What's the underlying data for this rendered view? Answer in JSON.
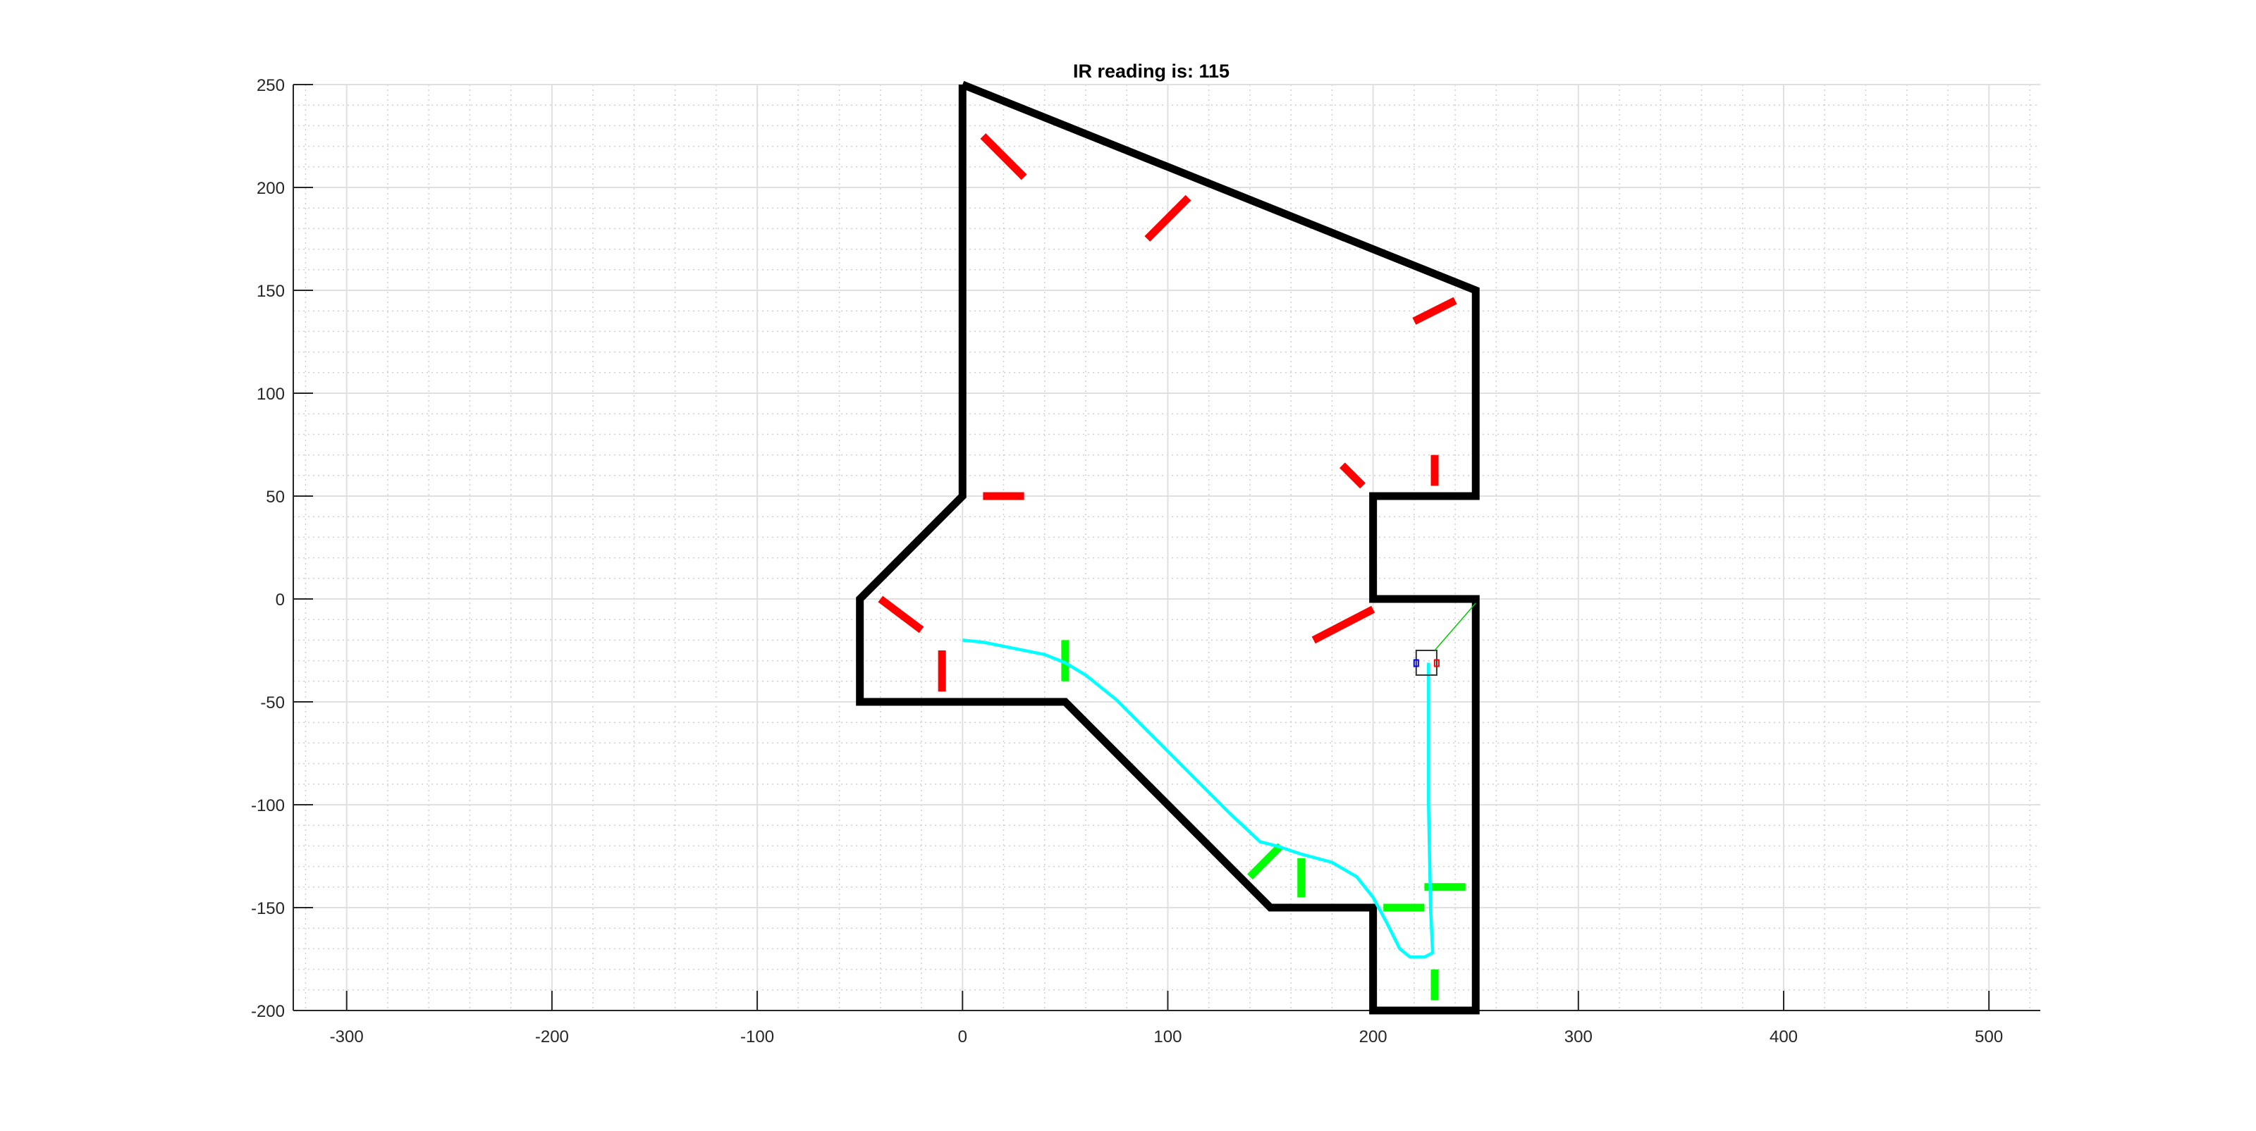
{
  "chart_data": {
    "type": "line",
    "title": "IR reading is: 115",
    "xlabel": "",
    "ylabel": "",
    "xlim": [
      -326,
      525
    ],
    "ylim": [
      -200,
      250
    ],
    "xticks": [
      -300,
      -200,
      -100,
      0,
      100,
      200,
      300,
      400,
      500
    ],
    "yticks": [
      -200,
      -150,
      -100,
      -50,
      0,
      50,
      100,
      150,
      200,
      250
    ],
    "xtick_labels": [
      "-300",
      "-200",
      "-100",
      "0",
      "100",
      "200",
      "300",
      "400",
      "500"
    ],
    "ytick_labels": [
      "-200",
      "-150",
      "-100",
      "-50",
      "0",
      "50",
      "100",
      "150",
      "200",
      "250"
    ],
    "grid": true,
    "minor_grid": true,
    "colors": {
      "wall": "#000000",
      "red_marker": "#ff0000",
      "green_marker": "#00ff00",
      "path": "#00ffff",
      "ir_ray": "#00cc00",
      "robot": "#333333",
      "left_wheel": "#0000ff",
      "right_wheel": "#ff0000"
    },
    "walls": [
      [
        0,
        250
      ],
      [
        250,
        150
      ],
      [
        250,
        50
      ],
      [
        200,
        50
      ],
      [
        200,
        0
      ],
      [
        250,
        0
      ],
      [
        250,
        -200
      ],
      [
        200,
        -200
      ],
      [
        200,
        -150
      ],
      [
        150,
        -150
      ],
      [
        50,
        -50
      ],
      [
        -50,
        -50
      ],
      [
        -50,
        0
      ],
      [
        0,
        50
      ],
      [
        0,
        250
      ]
    ],
    "red_segments": [
      [
        [
          10,
          225
        ],
        [
          30,
          205
        ]
      ],
      [
        [
          90,
          175
        ],
        [
          110,
          195
        ]
      ],
      [
        [
          220,
          135
        ],
        [
          240,
          145
        ]
      ],
      [
        [
          10,
          50
        ],
        [
          30,
          50
        ]
      ],
      [
        [
          185,
          65
        ],
        [
          195,
          55
        ]
      ],
      [
        [
          230,
          55
        ],
        [
          230,
          70
        ]
      ],
      [
        [
          171,
          -20
        ],
        [
          200,
          -5
        ]
      ],
      [
        [
          -40,
          0
        ],
        [
          -20,
          -15
        ]
      ],
      [
        [
          -10,
          -25
        ],
        [
          -10,
          -45
        ]
      ]
    ],
    "green_segments": [
      [
        [
          50,
          -20
        ],
        [
          50,
          -40
        ]
      ],
      [
        [
          140,
          -135
        ],
        [
          155,
          -120
        ]
      ],
      [
        [
          165,
          -126
        ],
        [
          165,
          -145
        ]
      ],
      [
        [
          205,
          -150
        ],
        [
          225,
          -150
        ]
      ],
      [
        [
          225,
          -140
        ],
        [
          245,
          -140
        ]
      ],
      [
        [
          230,
          -180
        ],
        [
          230,
          -195
        ]
      ]
    ],
    "path": [
      [
        0,
        -20
      ],
      [
        10,
        -21
      ],
      [
        25,
        -24
      ],
      [
        40,
        -27
      ],
      [
        50,
        -31
      ],
      [
        60,
        -37
      ],
      [
        75,
        -49
      ],
      [
        90,
        -64
      ],
      [
        110,
        -84
      ],
      [
        130,
        -104
      ],
      [
        145,
        -118
      ],
      [
        153,
        -120
      ],
      [
        165,
        -124
      ],
      [
        180,
        -128
      ],
      [
        192,
        -135
      ],
      [
        200,
        -145
      ],
      [
        207,
        -158
      ],
      [
        213,
        -170
      ],
      [
        218,
        -174
      ],
      [
        225,
        -174
      ],
      [
        229,
        -172
      ],
      [
        228,
        -150
      ],
      [
        227,
        -100
      ],
      [
        227,
        -50
      ],
      [
        227,
        -31
      ]
    ],
    "robot": {
      "box": [
        [
          221,
          -25
        ],
        [
          231,
          -37
        ]
      ],
      "left_wheel": [
        221,
        -31
      ],
      "right_wheel": [
        231,
        -31
      ]
    },
    "ir_ray": [
      [
        250,
        -2
      ],
      [
        230,
        -25
      ]
    ]
  }
}
